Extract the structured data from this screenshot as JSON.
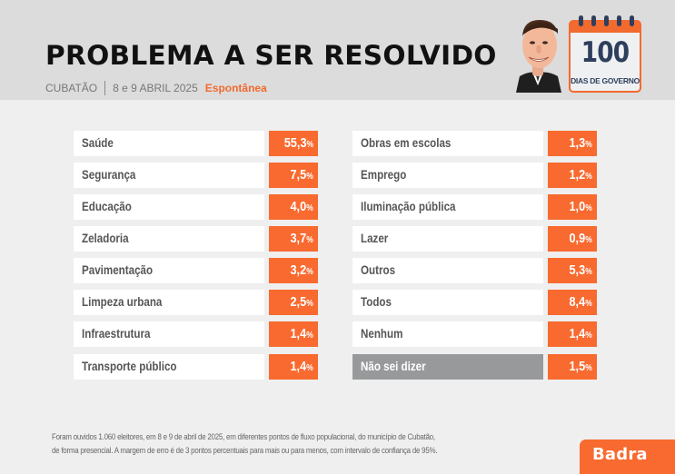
{
  "header": {
    "title": "PROBLEMA A SER RESOLVIDO",
    "city": "CUBATÃO",
    "dates": "8 e 9 ABRIL 2025",
    "survey_type": "Espontânea",
    "badge": {
      "number": "100",
      "caption": "DIAS DE GOVERNO",
      "icon": "calendar-icon"
    },
    "avatar_icon": "caricature-portrait"
  },
  "colors": {
    "accent": "#f86a2f",
    "header_bg": "#dcdcdd",
    "page_bg": "#efefef",
    "label_bg": "#ffffff",
    "label_text": "#555555",
    "neutral_label_bg": "#98999b",
    "calendar_navy": "#2e3e5c"
  },
  "chart_data": {
    "type": "table",
    "title": "PROBLEMA A SER RESOLVIDO",
    "subtitle": "CUBATÃO | 8 e 9 ABRIL 2025 Espontânea",
    "unit": "%",
    "columns": [
      {
        "items": [
          {
            "label": "Saúde",
            "value": 55.3,
            "display": "55,3"
          },
          {
            "label": "Segurança",
            "value": 7.5,
            "display": "7,5"
          },
          {
            "label": "Educação",
            "value": 4.0,
            "display": "4,0"
          },
          {
            "label": "Zeladoria",
            "value": 3.7,
            "display": "3,7"
          },
          {
            "label": "Pavimentação",
            "value": 3.2,
            "display": "3,2"
          },
          {
            "label": "Limpeza urbana",
            "value": 2.5,
            "display": "2,5"
          },
          {
            "label": "Infraestrutura",
            "value": 1.4,
            "display": "1,4"
          },
          {
            "label": "Transporte público",
            "value": 1.4,
            "display": "1,4"
          }
        ]
      },
      {
        "items": [
          {
            "label": "Obras em escolas",
            "value": 1.3,
            "display": "1,3"
          },
          {
            "label": "Emprego",
            "value": 1.2,
            "display": "1,2"
          },
          {
            "label": "Iluminação pública",
            "value": 1.0,
            "display": "1,0"
          },
          {
            "label": "Lazer",
            "value": 0.9,
            "display": "0,9"
          },
          {
            "label": "Outros",
            "value": 5.3,
            "display": "5,3"
          },
          {
            "label": "Todos",
            "value": 8.4,
            "display": "8,4"
          },
          {
            "label": "Nenhum",
            "value": 1.4,
            "display": "1,4"
          },
          {
            "label": "Não sei dizer",
            "value": 1.5,
            "display": "1,5",
            "neutral": true
          }
        ]
      }
    ]
  },
  "footnote": {
    "line1": "Foram ouvidos 1.060 eleitores, em 8 e 9 de abril de 2025, em diferentes pontos de fluxo populacional, do município de Cubatão,",
    "line2": "de forma presencial. A margem de erro é de 3 pontos percentuais para mais ou para menos, com intervalo de confiança de 95%."
  },
  "brand": {
    "name": "Badra"
  }
}
